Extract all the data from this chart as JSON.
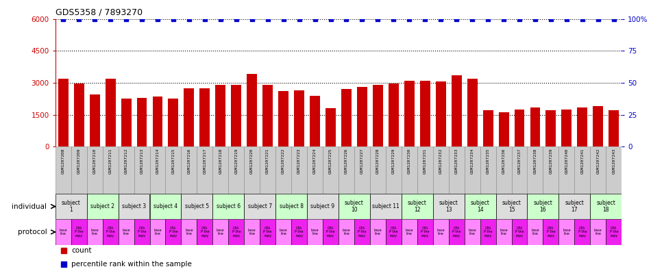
{
  "title": "GDS5358 / 7893270",
  "samples": [
    "GSM1207208",
    "GSM1207209",
    "GSM1207210",
    "GSM1207211",
    "GSM1207212",
    "GSM1207213",
    "GSM1207214",
    "GSM1207215",
    "GSM1207216",
    "GSM1207217",
    "GSM1207218",
    "GSM1207219",
    "GSM1207220",
    "GSM1207221",
    "GSM1207222",
    "GSM1207223",
    "GSM1207224",
    "GSM1207225",
    "GSM1207226",
    "GSM1207227",
    "GSM1207228",
    "GSM1207229",
    "GSM1207230",
    "GSM1207231",
    "GSM1207232",
    "GSM1207233",
    "GSM1207234",
    "GSM1207235",
    "GSM1207236",
    "GSM1207237",
    "GSM1207238",
    "GSM1207239",
    "GSM1207240",
    "GSM1207241",
    "GSM1207242",
    "GSM1207243"
  ],
  "counts": [
    3200,
    2950,
    2450,
    3200,
    2250,
    2300,
    2350,
    2250,
    2750,
    2750,
    2900,
    2900,
    3400,
    2900,
    2600,
    2650,
    2400,
    1800,
    2700,
    2800,
    2900,
    2950,
    3100,
    3100,
    3050,
    3350,
    3200,
    1700,
    1600,
    1750,
    1850,
    1700,
    1750,
    1850,
    1900,
    1700
  ],
  "percentile_rank": [
    100,
    100,
    100,
    100,
    100,
    100,
    100,
    100,
    100,
    100,
    100,
    100,
    100,
    100,
    100,
    100,
    100,
    100,
    100,
    100,
    100,
    100,
    100,
    100,
    100,
    100,
    100,
    100,
    100,
    100,
    100,
    100,
    100,
    100,
    100,
    100
  ],
  "ylim_left": [
    0,
    6000
  ],
  "ylim_right": [
    0,
    100
  ],
  "yticks_left": [
    0,
    1500,
    3000,
    4500,
    6000
  ],
  "yticks_right": [
    0,
    25,
    50,
    75,
    100
  ],
  "bar_color": "#cc0000",
  "dot_color": "#0000cc",
  "subjects": [
    {
      "label": "subject\n1",
      "start": 0,
      "end": 2,
      "color": "#dddddd"
    },
    {
      "label": "subject 2",
      "start": 2,
      "end": 4,
      "color": "#ccffcc"
    },
    {
      "label": "subject 3",
      "start": 4,
      "end": 6,
      "color": "#dddddd"
    },
    {
      "label": "subject 4",
      "start": 6,
      "end": 8,
      "color": "#ccffcc"
    },
    {
      "label": "subject 5",
      "start": 8,
      "end": 10,
      "color": "#dddddd"
    },
    {
      "label": "subject 6",
      "start": 10,
      "end": 12,
      "color": "#ccffcc"
    },
    {
      "label": "subject 7",
      "start": 12,
      "end": 14,
      "color": "#dddddd"
    },
    {
      "label": "subject 8",
      "start": 14,
      "end": 16,
      "color": "#ccffcc"
    },
    {
      "label": "subject 9",
      "start": 16,
      "end": 18,
      "color": "#dddddd"
    },
    {
      "label": "subject\n10",
      "start": 18,
      "end": 20,
      "color": "#ccffcc"
    },
    {
      "label": "subject 11",
      "start": 20,
      "end": 22,
      "color": "#dddddd"
    },
    {
      "label": "subject\n12",
      "start": 22,
      "end": 24,
      "color": "#ccffcc"
    },
    {
      "label": "subject\n13",
      "start": 24,
      "end": 26,
      "color": "#dddddd"
    },
    {
      "label": "subject\n14",
      "start": 26,
      "end": 28,
      "color": "#ccffcc"
    },
    {
      "label": "subject\n15",
      "start": 28,
      "end": 30,
      "color": "#dddddd"
    },
    {
      "label": "subject\n16",
      "start": 30,
      "end": 32,
      "color": "#ccffcc"
    },
    {
      "label": "subject\n17",
      "start": 32,
      "end": 34,
      "color": "#dddddd"
    },
    {
      "label": "subject\n18",
      "start": 34,
      "end": 36,
      "color": "#ccffcc"
    }
  ],
  "prot_color_baseline": "#ff88ff",
  "prot_color_cpa": "#ee22ee",
  "prot_label_baseline": "base\nline",
  "prot_label_cpa": "CPA\nP the\nrapy",
  "xtick_bg": "#cccccc",
  "legend_count_color": "#cc0000",
  "legend_pct_color": "#0000cc"
}
